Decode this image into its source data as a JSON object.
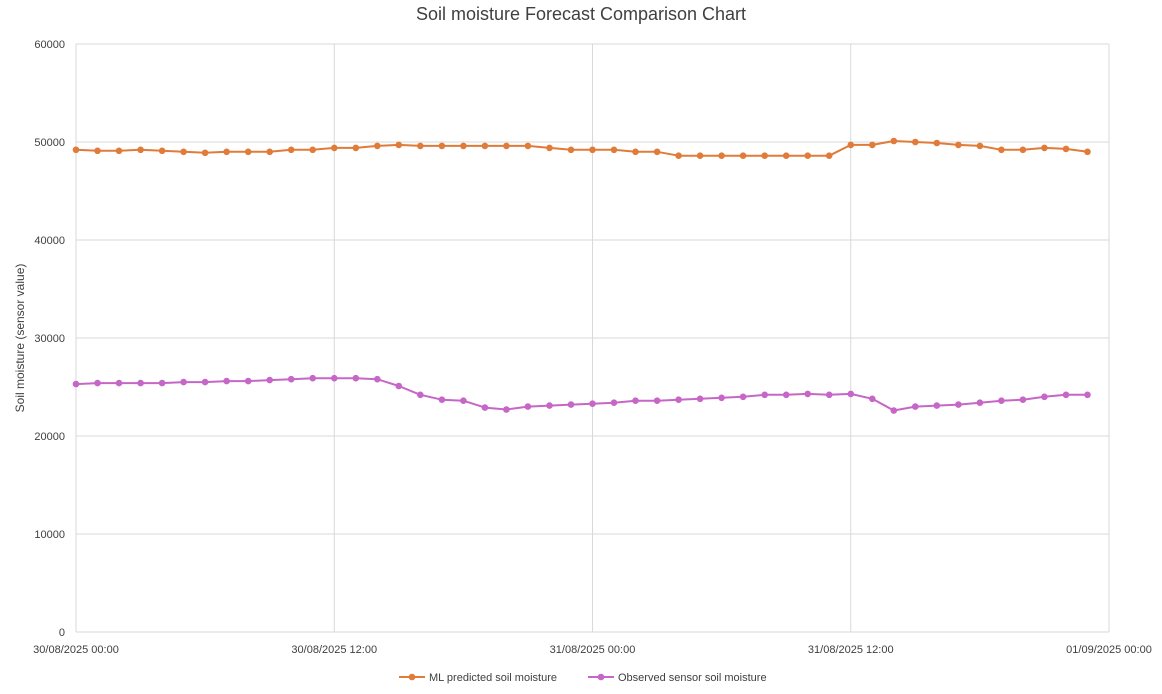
{
  "chart_data": {
    "type": "line",
    "title": "Soil moisture  Forecast Comparison Chart",
    "ylabel": "Soil moisture (sensor value)",
    "xlabel": "",
    "ylim": [
      0,
      60000
    ],
    "yticks": [
      0,
      10000,
      20000,
      30000,
      40000,
      50000,
      60000
    ],
    "xlim": [
      "30/08/2025 00:00",
      "01/09/2025 00:00"
    ],
    "xticks": [
      "30/08/2025 00:00",
      "30/08/2025 12:00",
      "31/08/2025 00:00",
      "31/08/2025 12:00",
      "01/09/2025 00:00"
    ],
    "x": [
      "30/08/2025 00:00",
      "30/08/2025 01:00",
      "30/08/2025 02:00",
      "30/08/2025 03:00",
      "30/08/2025 04:00",
      "30/08/2025 05:00",
      "30/08/2025 06:00",
      "30/08/2025 07:00",
      "30/08/2025 08:00",
      "30/08/2025 09:00",
      "30/08/2025 10:00",
      "30/08/2025 11:00",
      "30/08/2025 12:00",
      "30/08/2025 13:00",
      "30/08/2025 14:00",
      "30/08/2025 15:00",
      "30/08/2025 16:00",
      "30/08/2025 17:00",
      "30/08/2025 18:00",
      "30/08/2025 19:00",
      "30/08/2025 20:00",
      "30/08/2025 21:00",
      "30/08/2025 22:00",
      "30/08/2025 23:00",
      "31/08/2025 00:00",
      "31/08/2025 01:00",
      "31/08/2025 02:00",
      "31/08/2025 03:00",
      "31/08/2025 04:00",
      "31/08/2025 05:00",
      "31/08/2025 06:00",
      "31/08/2025 07:00",
      "31/08/2025 08:00",
      "31/08/2025 09:00",
      "31/08/2025 10:00",
      "31/08/2025 11:00",
      "31/08/2025 12:00",
      "31/08/2025 13:00",
      "31/08/2025 14:00",
      "31/08/2025 15:00",
      "31/08/2025 16:00",
      "31/08/2025 17:00",
      "31/08/2025 18:00",
      "31/08/2025 19:00",
      "31/08/2025 20:00",
      "31/08/2025 21:00",
      "31/08/2025 22:00",
      "31/08/2025 23:00"
    ],
    "series": [
      {
        "name": "ML predicted soil moisture",
        "color": "#e07b39",
        "values": [
          49200,
          49100,
          49100,
          49200,
          49100,
          49000,
          48900,
          49000,
          49000,
          49000,
          49200,
          49200,
          49400,
          49400,
          49600,
          49700,
          49600,
          49600,
          49600,
          49600,
          49600,
          49600,
          49400,
          49200,
          49200,
          49200,
          49000,
          49000,
          48600,
          48600,
          48600,
          48600,
          48600,
          48600,
          48600,
          48600,
          49700,
          49700,
          50100,
          50000,
          49900,
          49700,
          49600,
          49200,
          49200,
          49400,
          49300,
          49000
        ]
      },
      {
        "name": "Observed sensor soil moisture",
        "color": "#c666c6",
        "values": [
          25300,
          25400,
          25400,
          25400,
          25400,
          25500,
          25500,
          25600,
          25600,
          25700,
          25800,
          25900,
          25900,
          25900,
          25800,
          25100,
          24200,
          23700,
          23600,
          22900,
          22700,
          23000,
          23100,
          23200,
          23300,
          23400,
          23600,
          23600,
          23700,
          23800,
          23900,
          24000,
          24200,
          24200,
          24300,
          24200,
          24300,
          23800,
          22600,
          23000,
          23100,
          23200,
          23400,
          23600,
          23700,
          24000,
          24200,
          24200
        ]
      }
    ],
    "legend": "bottom",
    "grid": true
  }
}
